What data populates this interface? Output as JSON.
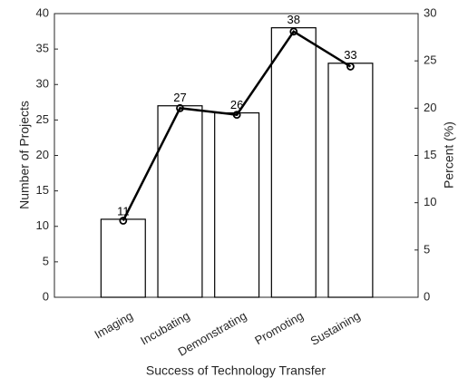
{
  "chart_data": {
    "type": "bar",
    "categories": [
      "Imaging",
      "Incubating",
      "Demonstrating",
      "Promoting",
      "Sustaining"
    ],
    "series": [
      {
        "type": "bar",
        "color": "#ffffff",
        "values": [
          11,
          27,
          26,
          38,
          33
        ]
      },
      {
        "type": "line",
        "axis": "y2",
        "color": "#000000",
        "values": [
          8.1,
          20,
          19.3,
          28.1,
          24.4
        ]
      }
    ],
    "xlabel": "Success of Technology Transfer",
    "ylabel": "Number of Projects",
    "y2label": "Percent (%)",
    "ylim": [
      0,
      40
    ],
    "yticks": [
      0,
      5,
      10,
      15,
      20,
      25,
      30,
      35,
      40
    ],
    "y2lim": [
      0,
      30
    ],
    "y2ticks": [
      0,
      5,
      10,
      15,
      20,
      25,
      30
    ],
    "grid": false
  }
}
